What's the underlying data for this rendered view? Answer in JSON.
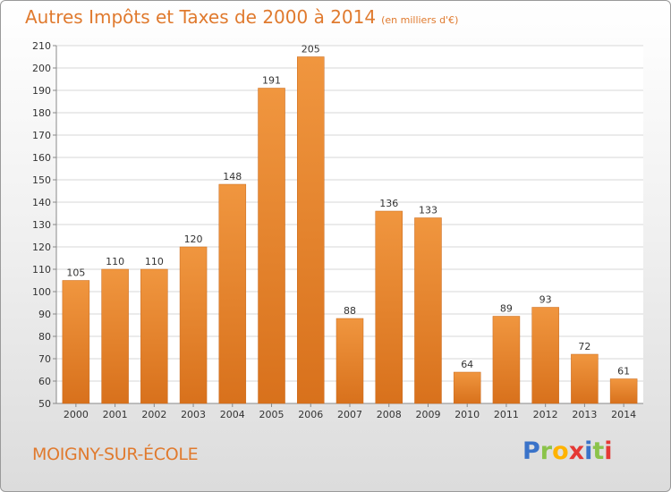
{
  "header": {
    "title": "Autres Impôts et Taxes de 2000 à 2014",
    "subtitle": "(en milliers d'€)"
  },
  "footer": {
    "commune": "MOIGNY-SUR-ÉCOLE",
    "logo": {
      "text": "Proxiti",
      "letters": [
        "P",
        "r",
        "o",
        "x",
        "i",
        "t",
        "i"
      ],
      "colors": [
        "#3a73c9",
        "#8bc34a",
        "#ffb300",
        "#e53935",
        "#3a73c9",
        "#8bc34a",
        "#e53935"
      ]
    }
  },
  "colors": {
    "bar": "#f0963f",
    "bar_dark": "#d8711c",
    "accent": "#e07a2e",
    "grid": "#d7d7d7"
  },
  "chart_data": {
    "type": "bar",
    "title": "Autres Impôts et Taxes de 2000 à 2014",
    "subtitle": "(en milliers d'€)",
    "xlabel": "",
    "ylabel": "",
    "categories": [
      "2000",
      "2001",
      "2002",
      "2003",
      "2004",
      "2005",
      "2006",
      "2007",
      "2008",
      "2009",
      "2010",
      "2011",
      "2012",
      "2013",
      "2014"
    ],
    "values": [
      105,
      110,
      110,
      120,
      148,
      191,
      205,
      88,
      136,
      133,
      64,
      89,
      93,
      72,
      61
    ],
    "ylim": [
      50,
      210
    ],
    "ytick_step": 10,
    "grid": true,
    "data_labels": true
  }
}
